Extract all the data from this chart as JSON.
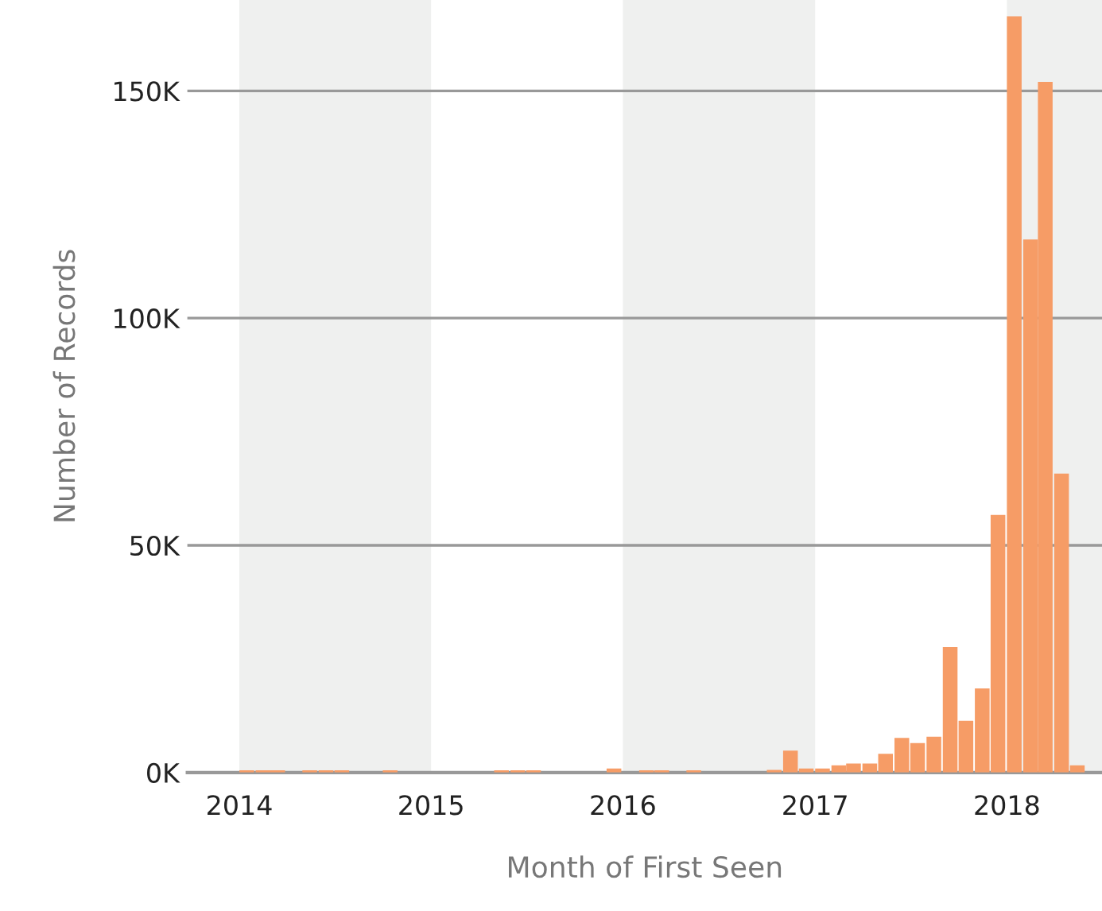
{
  "chart_data": {
    "type": "bar",
    "xlabel": "Month of First Seen",
    "ylabel": "Number of Records",
    "x": [
      "2014-01-15",
      "2014-02-15",
      "2014-03-15",
      "2014-04-15",
      "2014-05-15",
      "2014-06-15",
      "2014-07-15",
      "2014-08-15",
      "2014-09-15",
      "2014-10-15",
      "2014-11-15",
      "2014-12-15",
      "2015-01-15",
      "2015-02-15",
      "2015-03-15",
      "2015-04-15",
      "2015-05-15",
      "2015-06-15",
      "2015-07-15",
      "2015-08-15",
      "2015-09-15",
      "2015-10-15",
      "2015-11-15",
      "2015-12-15",
      "2016-01-15",
      "2016-02-15",
      "2016-03-15",
      "2016-04-15",
      "2016-05-15",
      "2016-06-15",
      "2016-07-15",
      "2016-08-15",
      "2016-09-15",
      "2016-10-15",
      "2016-11-15",
      "2016-12-15",
      "2017-01-15",
      "2017-02-15",
      "2017-03-15",
      "2017-04-15",
      "2017-05-15",
      "2017-06-15",
      "2017-07-15",
      "2017-08-15",
      "2017-09-15",
      "2017-10-15",
      "2017-11-15",
      "2017-12-15",
      "2018-01-15",
      "2018-02-15",
      "2018-03-15",
      "2018-04-15",
      "2018-05-15",
      "2018-06-15"
    ],
    "values": [
      500,
      500,
      500,
      0,
      500,
      500,
      500,
      0,
      0,
      500,
      0,
      0,
      0,
      0,
      0,
      0,
      500,
      500,
      500,
      0,
      0,
      0,
      0,
      900,
      0,
      500,
      500,
      0,
      500,
      0,
      0,
      0,
      0,
      600,
      4800,
      900,
      900,
      1600,
      2000,
      2000,
      4100,
      7600,
      6500,
      7900,
      27600,
      11400,
      18500,
      56700,
      166400,
      117300,
      152000,
      65800,
      1600,
      0
    ],
    "color": "#f69c66",
    "xlim": [
      "2013-09-24",
      "2018-07-01"
    ],
    "xticks": [
      {
        "value": "2014-01-01",
        "label": "2014"
      },
      {
        "value": "2015-01-01",
        "label": "2015"
      },
      {
        "value": "2016-01-01",
        "label": "2016"
      },
      {
        "value": "2017-01-01",
        "label": "2017"
      },
      {
        "value": "2018-01-01",
        "label": "2018"
      }
    ],
    "ylim": [
      0,
      170000
    ],
    "yticks": [
      {
        "value": 0,
        "label": "0K"
      },
      {
        "value": 50000,
        "label": "50K"
      },
      {
        "value": 100000,
        "label": "100K"
      },
      {
        "value": 150000,
        "label": "150K"
      }
    ],
    "bands": [
      {
        "axis": "x",
        "from": "2014-01-01",
        "to": "2015-01-01",
        "color": "#eff0ef"
      },
      {
        "axis": "x",
        "from": "2016-01-01",
        "to": "2017-01-01",
        "color": "#eff0ef"
      },
      {
        "axis": "x",
        "from": "2018-01-01",
        "to": "2019-01-01",
        "color": "#eff0ef"
      }
    ],
    "grid": "y",
    "legend": false
  }
}
